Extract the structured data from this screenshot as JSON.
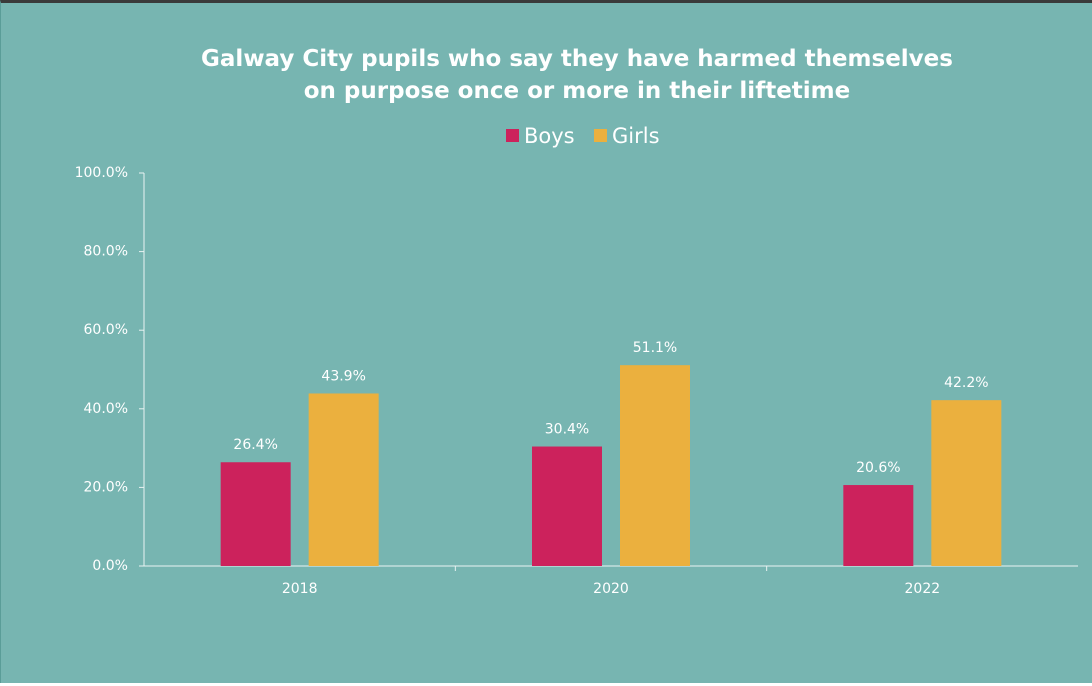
{
  "chart_data": {
    "type": "bar",
    "title": "Galway City pupils who say they have harmed themselves on purpose once or more in their liftetime",
    "categories": [
      "2018",
      "2020",
      "2022"
    ],
    "series": [
      {
        "name": "Boys",
        "color": "#cc225c",
        "values": [
          26.4,
          30.4,
          20.6
        ],
        "value_labels": [
          "26.4%",
          "30.4%",
          "20.6%"
        ]
      },
      {
        "name": "Girls",
        "color": "#ebb03e",
        "values": [
          43.9,
          51.1,
          42.2
        ],
        "value_labels": [
          "43.9%",
          "51.1%",
          "42.2%"
        ]
      }
    ],
    "ylim": [
      0,
      100
    ],
    "yticks": [
      {
        "value": 0,
        "label": "0.0%"
      },
      {
        "value": 20,
        "label": "20.0%"
      },
      {
        "value": 40,
        "label": "40.0%"
      },
      {
        "value": 60,
        "label": "60.0%"
      },
      {
        "value": 80,
        "label": "80.0%"
      },
      {
        "value": 100,
        "label": "100.0%"
      }
    ],
    "legend": "top"
  }
}
